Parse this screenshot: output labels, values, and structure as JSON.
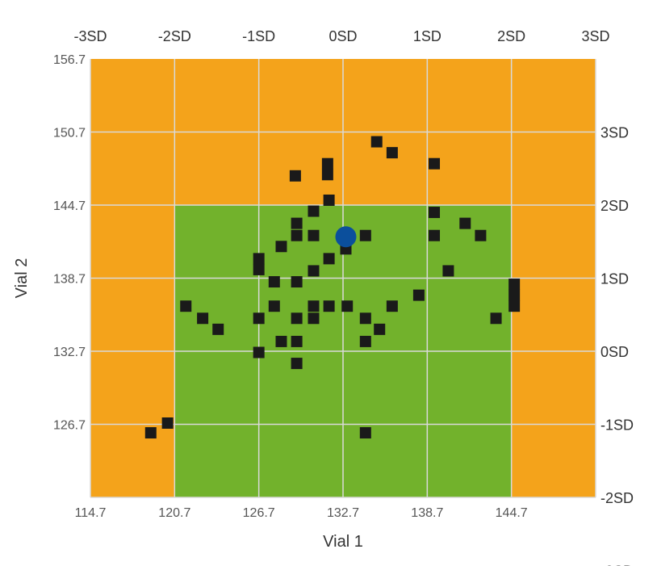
{
  "chart_data": {
    "type": "scatter",
    "xlabel": "Vial 1",
    "ylabel": "Vial 2",
    "mean": 132.7,
    "sd": 6,
    "xlim": [
      114.7,
      150.7
    ],
    "ylim": [
      120.7,
      156.7
    ],
    "x_ticks": [
      "114.7",
      "120.7",
      "126.7",
      "132.7",
      "138.7",
      "144.7"
    ],
    "y_ticks": [
      "156.7",
      "150.7",
      "144.7",
      "138.7",
      "132.7",
      "126.7"
    ],
    "top_sd_ticks": [
      "-3SD",
      "-2SD",
      "-1SD",
      "0SD",
      "1SD",
      "2SD",
      "3SD"
    ],
    "right_sd_ticks": [
      "3SD",
      "2SD",
      "1SD",
      "0SD",
      "-1SD",
      "-2SD",
      "-3SD"
    ],
    "zones": {
      "outer": {
        "range_sd": [
          -3,
          3
        ],
        "color": "#F4A31B"
      },
      "inner": {
        "range_sd": [
          -2,
          2
        ],
        "color": "#72B22C"
      }
    },
    "grid": true,
    "grid_color": "#D9D9D9",
    "marker_color": "#1A1A1A",
    "highlight_color": "#0B4F9C",
    "highlight_point": [
      132.9,
      142.1
    ],
    "points": [
      [
        135.1,
        149.9
      ],
      [
        136.2,
        149.0
      ],
      [
        139.2,
        148.1
      ],
      [
        131.6,
        148.1
      ],
      [
        131.6,
        147.2
      ],
      [
        129.3,
        147.1
      ],
      [
        131.7,
        145.1
      ],
      [
        130.6,
        144.2
      ],
      [
        139.2,
        144.1
      ],
      [
        129.4,
        143.2
      ],
      [
        141.4,
        143.2
      ],
      [
        129.4,
        142.2
      ],
      [
        130.6,
        142.2
      ],
      [
        134.3,
        142.2
      ],
      [
        139.2,
        142.2
      ],
      [
        142.5,
        142.2
      ],
      [
        128.3,
        141.3
      ],
      [
        132.9,
        141.1
      ],
      [
        126.7,
        140.3
      ],
      [
        131.7,
        140.3
      ],
      [
        126.7,
        139.4
      ],
      [
        130.6,
        139.3
      ],
      [
        140.2,
        139.3
      ],
      [
        127.8,
        138.4
      ],
      [
        129.4,
        138.4
      ],
      [
        144.9,
        138.2
      ],
      [
        138.1,
        137.3
      ],
      [
        144.9,
        137.3
      ],
      [
        121.5,
        136.4
      ],
      [
        127.8,
        136.4
      ],
      [
        130.6,
        136.4
      ],
      [
        131.7,
        136.4
      ],
      [
        133.0,
        136.4
      ],
      [
        136.2,
        136.4
      ],
      [
        144.9,
        136.4
      ],
      [
        122.7,
        135.4
      ],
      [
        126.7,
        135.4
      ],
      [
        129.4,
        135.4
      ],
      [
        130.6,
        135.4
      ],
      [
        134.3,
        135.4
      ],
      [
        143.6,
        135.4
      ],
      [
        123.8,
        134.5
      ],
      [
        135.3,
        134.5
      ],
      [
        128.3,
        133.5
      ],
      [
        129.4,
        133.5
      ],
      [
        134.3,
        133.5
      ],
      [
        126.7,
        132.6
      ],
      [
        129.4,
        131.7
      ],
      [
        120.2,
        126.8
      ],
      [
        119.0,
        126.0
      ],
      [
        134.3,
        126.0
      ]
    ]
  }
}
